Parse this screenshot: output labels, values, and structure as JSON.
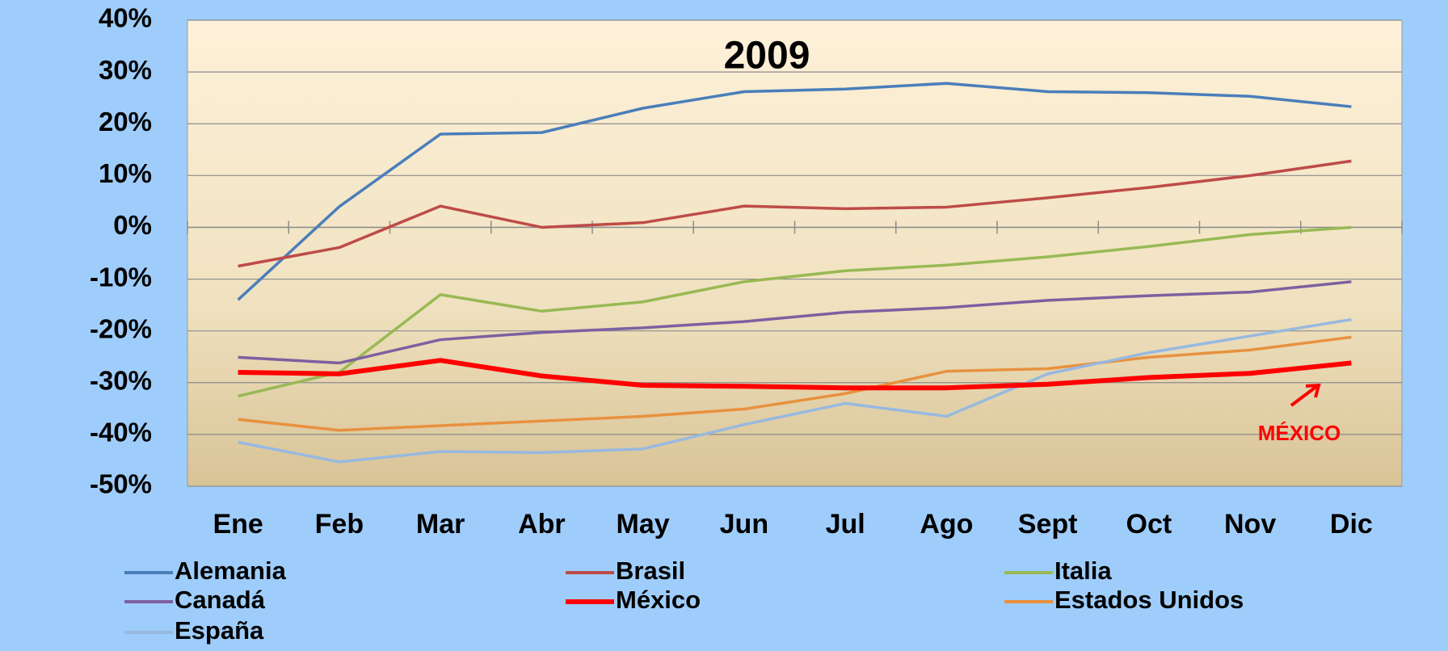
{
  "chart_data": {
    "type": "line",
    "title": "2009",
    "categories": [
      "Ene",
      "Feb",
      "Mar",
      "Abr",
      "May",
      "Jun",
      "Jul",
      "Ago",
      "Sept",
      "Oct",
      "Nov",
      "Dic"
    ],
    "ylim": [
      -50,
      40
    ],
    "yticks": [
      {
        "value": -50,
        "label": "-50%"
      },
      {
        "value": -40,
        "label": "-40%"
      },
      {
        "value": -30,
        "label": "-30%"
      },
      {
        "value": -20,
        "label": "-20%"
      },
      {
        "value": -10,
        "label": "-10%"
      },
      {
        "value": 0,
        "label": "0%"
      },
      {
        "value": 10,
        "label": "10%"
      },
      {
        "value": 20,
        "label": "20%"
      },
      {
        "value": 30,
        "label": "30%"
      },
      {
        "value": 40,
        "label": "40%"
      }
    ],
    "grid": true,
    "annotation": "MÉXICO",
    "series": [
      {
        "name": "Alemania",
        "color": "#4a7ebb",
        "values": [
          -14,
          4,
          18,
          18.3,
          23,
          26.2,
          26.7,
          27.8,
          26.2,
          26,
          25.3,
          23.3
        ]
      },
      {
        "name": "Brasil",
        "color": "#be4b48",
        "values": [
          -7.5,
          -3.9,
          4.1,
          0,
          0.9,
          4.1,
          3.6,
          3.9,
          5.7,
          7.7,
          10,
          12.8
        ]
      },
      {
        "name": "Italia",
        "color": "#98b954",
        "values": [
          -32.6,
          -28,
          -13,
          -16.2,
          -14.4,
          -10.5,
          -8.4,
          -7.3,
          -5.7,
          -3.7,
          -1.4,
          0
        ]
      },
      {
        "name": "Canadá",
        "color": "#7d60a0",
        "values": [
          -25.1,
          -26.2,
          -21.7,
          -20.3,
          -19.4,
          -18.2,
          -16.4,
          -15.5,
          -14.1,
          -13.2,
          -12.5,
          -10.5
        ]
      },
      {
        "name": "México",
        "color": "#ff0000",
        "values": [
          -28,
          -28.3,
          -25.7,
          -28.7,
          -30.5,
          -30.7,
          -31,
          -31,
          -30.3,
          -29,
          -28.2,
          -26.2
        ]
      },
      {
        "name": "Estados Unidos",
        "color": "#e8913f",
        "values": [
          -37.1,
          -39.2,
          -38.3,
          -37.4,
          -36.5,
          -35.1,
          -32.1,
          -27.8,
          -27.3,
          -25.1,
          -23.7,
          -21.2
        ]
      },
      {
        "name": "España",
        "color": "#97b9e0",
        "values": [
          -41.5,
          -45.3,
          -43.3,
          -43.5,
          -42.8,
          -38.1,
          -34,
          -36.5,
          -28.3,
          -24.2,
          -21,
          -17.8
        ]
      }
    ]
  }
}
